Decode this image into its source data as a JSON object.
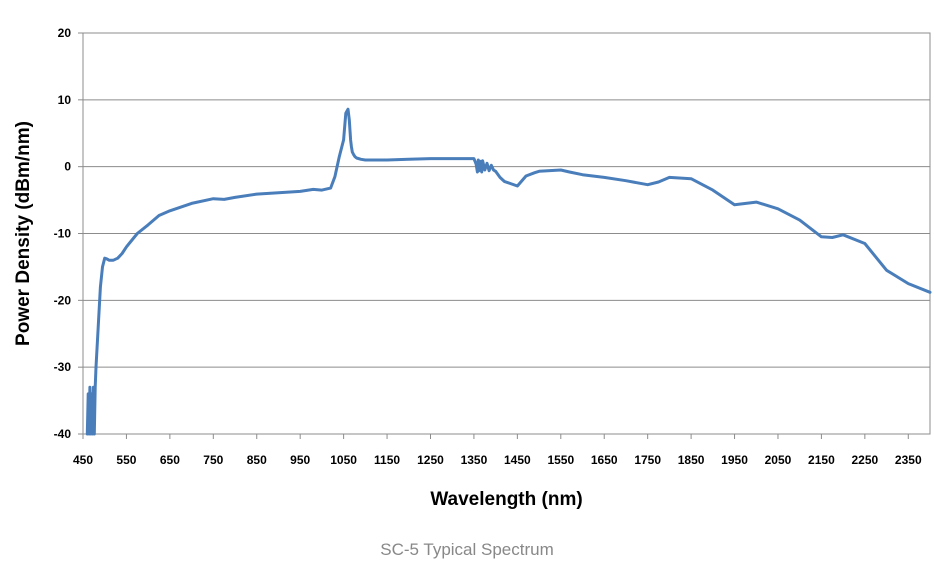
{
  "chart_data": {
    "type": "line",
    "xlabel": "Wavelength (nm)",
    "ylabel": "Power Density (dBm/nm)",
    "xlim": [
      450,
      2400
    ],
    "ylim": [
      -40,
      20
    ],
    "x_ticks": [
      450,
      550,
      650,
      750,
      850,
      950,
      1050,
      1150,
      1250,
      1350,
      1450,
      1550,
      1650,
      1750,
      1850,
      1950,
      2050,
      2150,
      2250,
      2350
    ],
    "y_ticks": [
      20,
      10,
      0,
      -10,
      -20,
      -30,
      -40
    ],
    "grid": "horizontal",
    "legend": "none",
    "line_color": "#4a7ebb",
    "series": [
      {
        "x": [
          460,
          462,
          464,
          466,
          468,
          470,
          472,
          474,
          476,
          478,
          480,
          485,
          490,
          495,
          500,
          505,
          510,
          520,
          530,
          540,
          550,
          575,
          600,
          625,
          650,
          700,
          750,
          775,
          800,
          850,
          900,
          950,
          980,
          1000,
          1020,
          1030,
          1040,
          1050,
          1055,
          1060,
          1063,
          1066,
          1068,
          1070,
          1073,
          1076,
          1080,
          1090,
          1100,
          1150,
          1200,
          1250,
          1300,
          1340,
          1350,
          1355,
          1358,
          1360,
          1362,
          1365,
          1368,
          1370,
          1375,
          1380,
          1385,
          1390,
          1395,
          1400,
          1410,
          1420,
          1450,
          1470,
          1490,
          1500,
          1520,
          1550,
          1570,
          1600,
          1650,
          1700,
          1750,
          1775,
          1800,
          1850,
          1900,
          1950,
          2000,
          2050,
          2100,
          2150,
          2175,
          2200,
          2250,
          2300,
          2350,
          2400
        ],
        "y": [
          -40,
          -34,
          -40,
          -33,
          -40,
          -34,
          -40,
          -33,
          -40,
          -33,
          -30,
          -24,
          -18,
          -15,
          -13.7,
          -13.8,
          -14,
          -14,
          -13.7,
          -13,
          -12,
          -10,
          -8.7,
          -7.3,
          -6.6,
          -5.5,
          -4.8,
          -4.9,
          -4.6,
          -4.1,
          -3.9,
          -3.7,
          -3.4,
          -3.5,
          -3.2,
          -1.5,
          1.5,
          4,
          8,
          8.6,
          7,
          4,
          3,
          2.2,
          1.8,
          1.5,
          1.3,
          1.1,
          1,
          1,
          1.1,
          1.2,
          1.2,
          1.2,
          1.2,
          0.4,
          -0.8,
          1,
          -0.6,
          0.8,
          -0.8,
          0.9,
          -0.5,
          0.5,
          -0.6,
          0.2,
          -0.5,
          -0.7,
          -1.6,
          -2.2,
          -2.9,
          -1.4,
          -0.9,
          -0.7,
          -0.6,
          -0.5,
          -0.8,
          -1.2,
          -1.6,
          -2.1,
          -2.7,
          -2.3,
          -1.6,
          -1.8,
          -3.5,
          -5.7,
          -5.3,
          -6.3,
          -8.0,
          -10.5,
          -10.6,
          -10.2,
          -11.5,
          -15.5,
          -17.5,
          -18.8
        ]
      }
    ]
  },
  "caption": "SC-5 Typical Spectrum"
}
